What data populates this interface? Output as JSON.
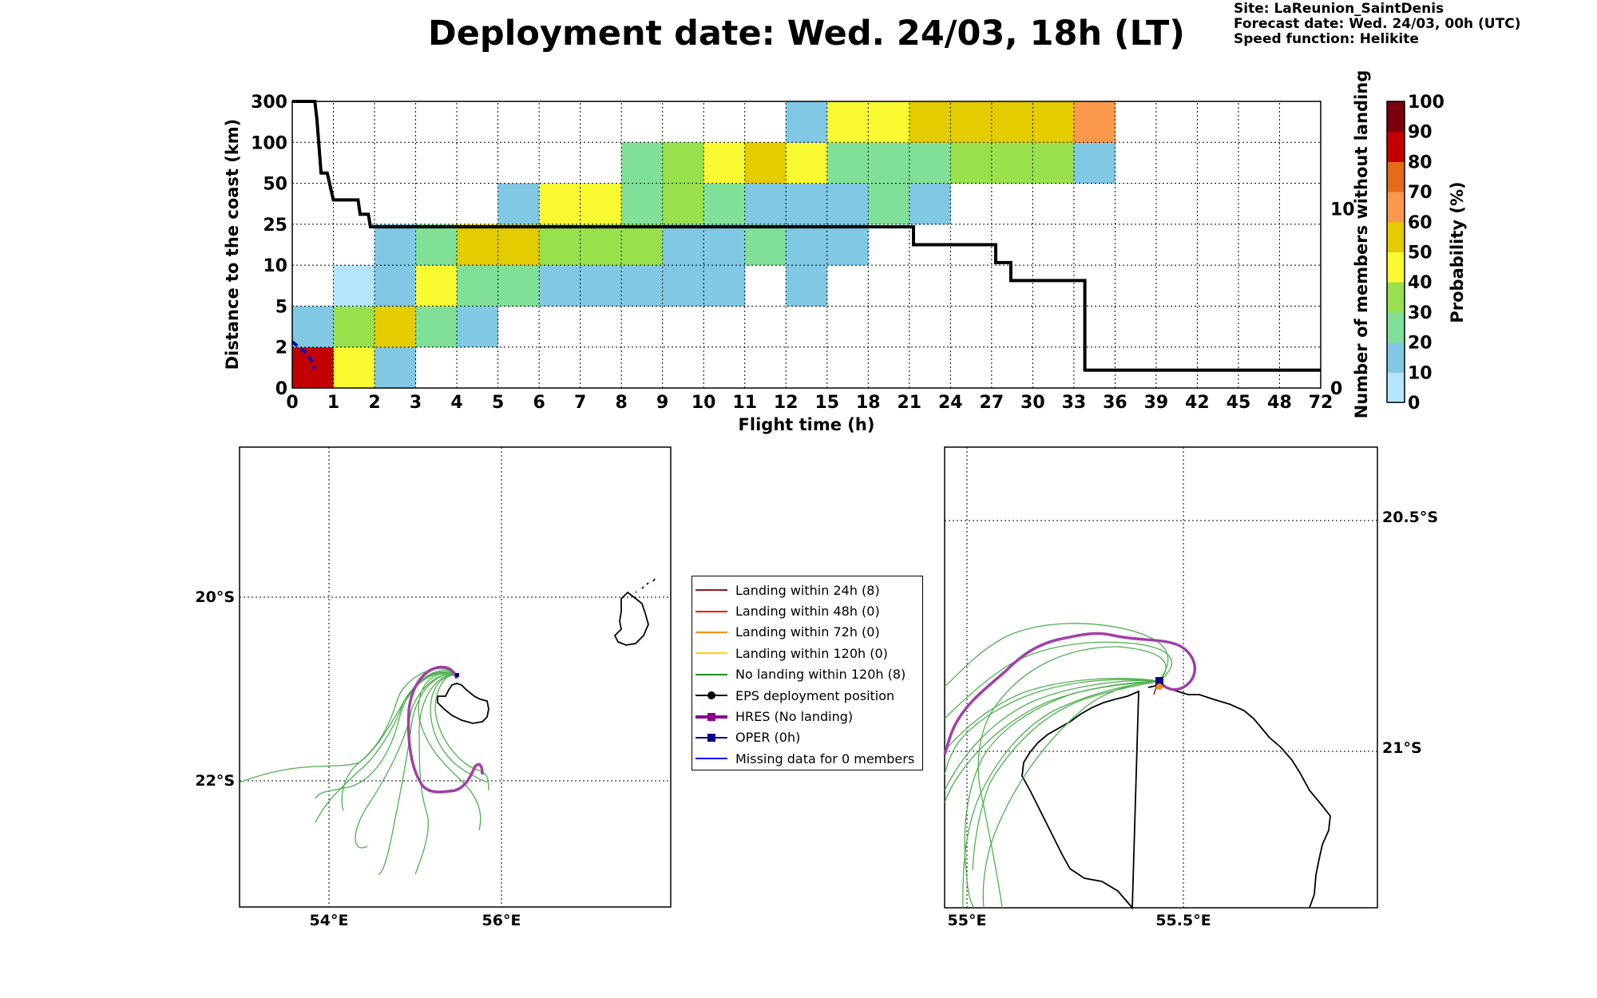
{
  "title": "Deployment date: Wed. 24/03, 18h (LT)",
  "site_info": {
    "site": "Site: LaReunion_SaintDenis",
    "forecast": "Forecast date: Wed. 24/03, 00h (UTC)",
    "speed": "Speed function: Helikite"
  },
  "chart_data": [
    {
      "type": "heatmap",
      "title": "Deployment date: Wed. 24/03, 18h (LT)",
      "xlabel": "Flight time (h)",
      "ylabel": "Distance to the coast (km)",
      "ylabel_right": "Number of members without landing",
      "colorbar_label": "Probability (%)",
      "x_ticks": [
        "0",
        "1",
        "2",
        "3",
        "4",
        "5",
        "6",
        "7",
        "8",
        "9",
        "10",
        "11",
        "12",
        "15",
        "18",
        "21",
        "24",
        "27",
        "30",
        "33",
        "36",
        "39",
        "42",
        "45",
        "48",
        "72"
      ],
      "y_ticks": [
        "0",
        "2",
        "5",
        "10",
        "25",
        "50",
        "100",
        "300"
      ],
      "y2_ticks": [
        {
          "value": 0,
          "label": "0"
        },
        {
          "value": 10,
          "label": "10"
        }
      ],
      "y2_range": [
        0,
        16
      ],
      "colorbar_ticks": [
        "0",
        "10",
        "20",
        "30",
        "40",
        "50",
        "60",
        "70",
        "80",
        "90",
        "100"
      ],
      "colorbar_colors": [
        "#b3e6fa",
        "#80c8e3",
        "#80e098",
        "#99e04d",
        "#fafa33",
        "#e3cc00",
        "#fa994d",
        "#e36b1a",
        "#c20000",
        "#7a000f"
      ],
      "cells": [
        [
          0,
          0,
          80
        ],
        [
          1,
          0,
          40
        ],
        [
          2,
          0,
          10
        ],
        [
          0,
          1,
          10
        ],
        [
          1,
          1,
          30
        ],
        [
          2,
          1,
          50
        ],
        [
          3,
          1,
          20
        ],
        [
          4,
          1,
          10
        ],
        [
          1,
          2,
          0
        ],
        [
          2,
          2,
          10
        ],
        [
          3,
          2,
          40
        ],
        [
          4,
          2,
          20
        ],
        [
          5,
          2,
          20
        ],
        [
          6,
          2,
          10
        ],
        [
          7,
          2,
          10
        ],
        [
          8,
          2,
          10
        ],
        [
          9,
          2,
          10
        ],
        [
          10,
          2,
          10
        ],
        [
          12,
          2,
          10
        ],
        [
          2,
          3,
          10
        ],
        [
          3,
          3,
          20
        ],
        [
          4,
          3,
          50
        ],
        [
          5,
          3,
          50
        ],
        [
          6,
          3,
          30
        ],
        [
          7,
          3,
          30
        ],
        [
          8,
          3,
          30
        ],
        [
          9,
          3,
          10
        ],
        [
          10,
          3,
          10
        ],
        [
          11,
          3,
          20
        ],
        [
          12,
          3,
          10
        ],
        [
          13,
          3,
          10
        ],
        [
          5,
          4,
          10
        ],
        [
          6,
          4,
          40
        ],
        [
          7,
          4,
          40
        ],
        [
          8,
          4,
          20
        ],
        [
          9,
          4,
          30
        ],
        [
          10,
          4,
          20
        ],
        [
          11,
          4,
          10
        ],
        [
          12,
          4,
          10
        ],
        [
          13,
          4,
          10
        ],
        [
          14,
          4,
          20
        ],
        [
          15,
          4,
          10
        ],
        [
          8,
          5,
          20
        ],
        [
          9,
          5,
          30
        ],
        [
          10,
          5,
          40
        ],
        [
          11,
          5,
          50
        ],
        [
          12,
          5,
          40
        ],
        [
          13,
          5,
          20
        ],
        [
          14,
          5,
          20
        ],
        [
          15,
          5,
          20
        ],
        [
          16,
          5,
          30
        ],
        [
          17,
          5,
          30
        ],
        [
          18,
          5,
          30
        ],
        [
          19,
          5,
          10
        ],
        [
          12,
          6,
          10
        ],
        [
          13,
          6,
          40
        ],
        [
          14,
          6,
          40
        ],
        [
          15,
          6,
          50
        ],
        [
          16,
          6,
          50
        ],
        [
          17,
          6,
          50
        ],
        [
          18,
          6,
          50
        ],
        [
          19,
          6,
          60
        ]
      ],
      "members_without_landing": [
        {
          "t": 0.0,
          "n": 16
        },
        {
          "t": 0.55,
          "n": 16
        },
        {
          "t": 0.6,
          "n": 15
        },
        {
          "t": 0.7,
          "n": 12
        },
        {
          "t": 0.85,
          "n": 12
        },
        {
          "t": 0.95,
          "n": 11
        },
        {
          "t": 1.0,
          "n": 10.5
        },
        {
          "t": 1.6,
          "n": 10.5
        },
        {
          "t": 1.65,
          "n": 9.7
        },
        {
          "t": 1.85,
          "n": 9.7
        },
        {
          "t": 1.9,
          "n": 9
        },
        {
          "t": 21.3,
          "n": 9
        },
        {
          "t": 21.3,
          "n": 8
        },
        {
          "t": 27.3,
          "n": 8
        },
        {
          "t": 27.3,
          "n": 7
        },
        {
          "t": 28.4,
          "n": 7
        },
        {
          "t": 28.4,
          "n": 6
        },
        {
          "t": 33.8,
          "n": 6
        },
        {
          "t": 33.8,
          "n": 1
        },
        {
          "t": 72.0,
          "n": 1
        }
      ]
    },
    {
      "type": "map",
      "lon_ticks": [
        "54°E",
        "56°E"
      ],
      "lat_ticks": [
        "20°S",
        "22°S"
      ],
      "lon_range": [
        53.0,
        58.0
      ],
      "lat_range": [
        -23.4,
        -18.4
      ]
    },
    {
      "type": "map",
      "lon_ticks": [
        "55°E",
        "55.5°E"
      ],
      "lat_ticks": [
        "20.5°S",
        "21°S"
      ],
      "lon_range": [
        54.95,
        55.95
      ],
      "lat_range": [
        -21.35,
        -20.35
      ]
    }
  ],
  "legend": [
    {
      "label": "Landing within 24h (8)",
      "color": "#8b1a1a",
      "marker": "none"
    },
    {
      "label": "Landing within 48h (0)",
      "color": "#ff0000",
      "marker": "none"
    },
    {
      "label": "Landing within 72h (0)",
      "color": "#ff8c00",
      "marker": "none"
    },
    {
      "label": "Landing within 120h (0)",
      "color": "#ffd700",
      "marker": "none"
    },
    {
      "label": "No landing within 120h (8)",
      "color": "#228b22",
      "marker": "none"
    },
    {
      "label": "EPS deployment position",
      "color": "#000000",
      "marker": "circle"
    },
    {
      "label": "HRES (No landing)",
      "color": "#8b008b",
      "marker": "square"
    },
    {
      "label": "OPER (0h)",
      "color": "#00008b",
      "marker": "square"
    },
    {
      "label": "Missing data for 0 members",
      "color": "#0000ff",
      "marker": "none"
    }
  ],
  "colors": {
    "eps_tracks": "#228b22",
    "hres_track": "#a040a8",
    "landing_24h": "#8b1a1a",
    "oper_marker": "#00008b",
    "blue_track": "#0000cc"
  }
}
